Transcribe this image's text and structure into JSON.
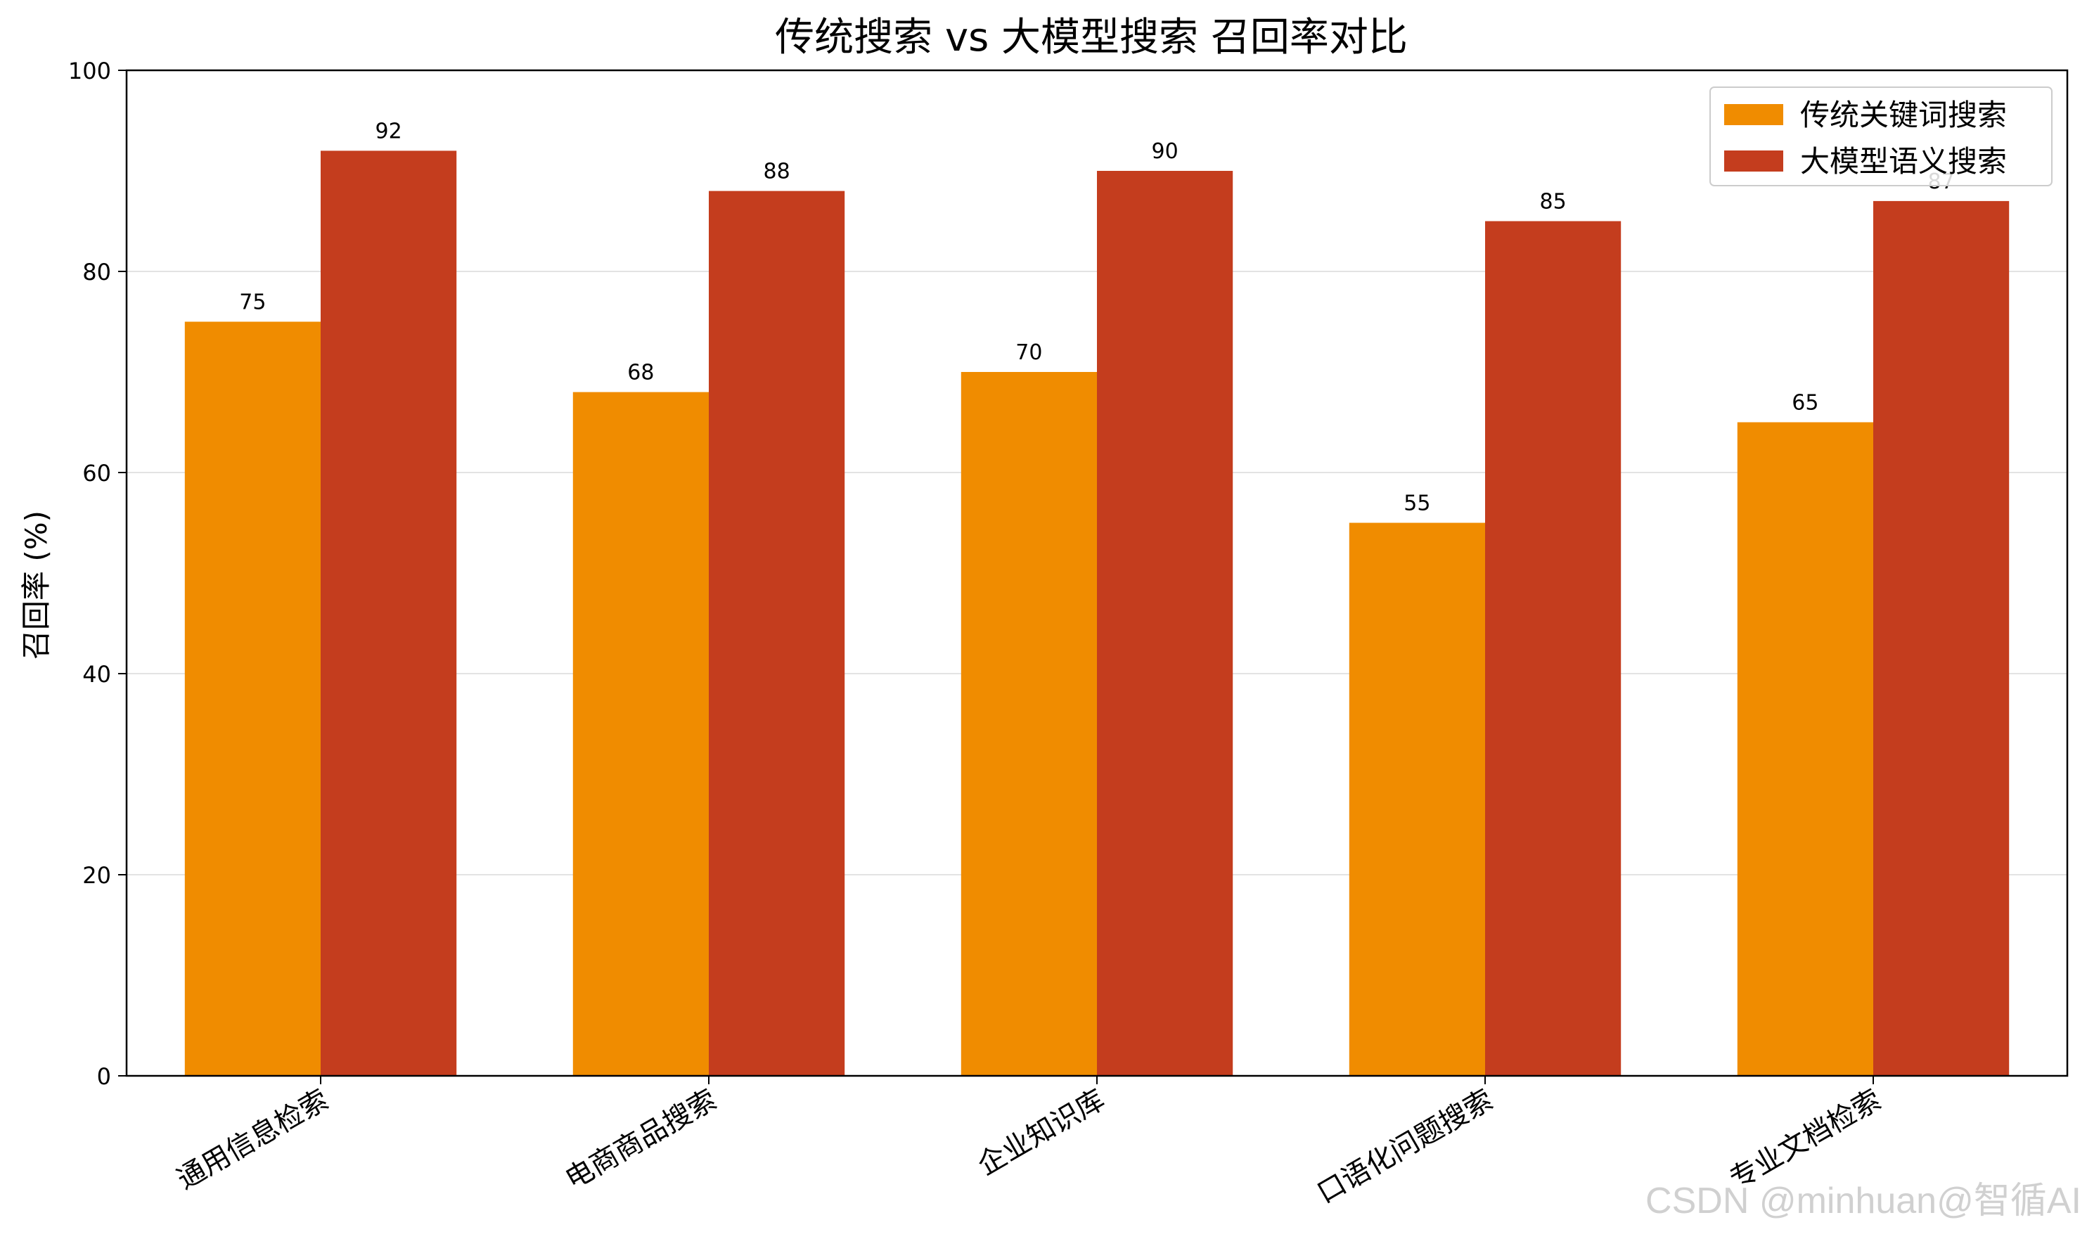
{
  "chart_data": {
    "type": "bar",
    "title": "传统搜索 vs 大模型搜索 召回率对比",
    "xlabel": "",
    "ylabel": "召回率 (%)",
    "ylim": [
      0,
      100
    ],
    "yticks": [
      0,
      20,
      40,
      60,
      80,
      100
    ],
    "grid": "horizontal",
    "legend_position": "top-right",
    "categories": [
      "通用信息检索",
      "电商商品搜索",
      "企业知识库",
      "口语化问题搜索",
      "专业文档检索"
    ],
    "series": [
      {
        "name": "传统关键词搜索",
        "color": "#f08c00",
        "values": [
          75,
          68,
          70,
          55,
          65
        ]
      },
      {
        "name": "大模型语义搜索",
        "color": "#c43d1e",
        "values": [
          92,
          88,
          90,
          85,
          87
        ]
      }
    ]
  },
  "watermark": "CSDN @minhuan@智循AI"
}
